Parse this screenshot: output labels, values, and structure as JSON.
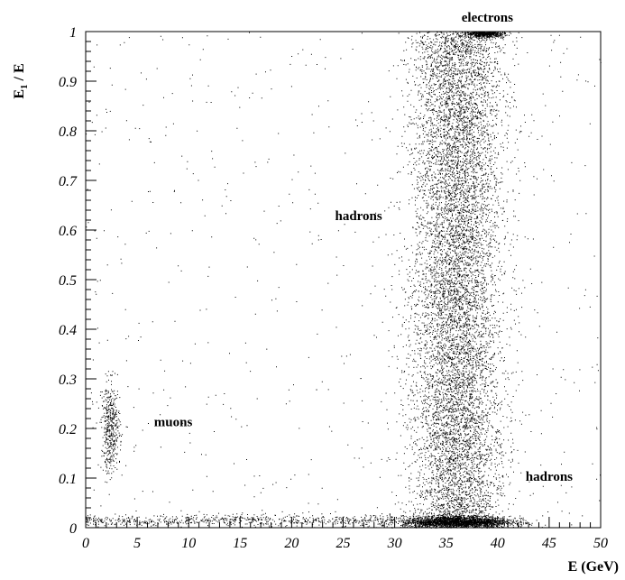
{
  "chart_data": {
    "type": "scatter",
    "xlabel": "E (GeV)",
    "ylabel": "E",
    "ylabel_sub": "1",
    "ylabel_suffix": " / E",
    "xlim": [
      0,
      50
    ],
    "ylim": [
      0,
      1
    ],
    "xticks": [
      0,
      5,
      10,
      15,
      20,
      25,
      30,
      35,
      40,
      45,
      50
    ],
    "yticks": [
      0,
      0.1,
      0.2,
      0.3,
      0.4,
      0.5,
      0.6,
      0.7,
      0.8,
      0.9,
      1
    ],
    "grid": false,
    "annotations": [
      {
        "text": "electrons",
        "x": 39.0,
        "y": 1.02
      },
      {
        "text": "hadrons",
        "x": 26.5,
        "y": 0.62
      },
      {
        "text": "muons",
        "x": 8.5,
        "y": 0.205
      },
      {
        "text": "hadrons",
        "x": 45.0,
        "y": 0.095
      }
    ],
    "clusters": [
      {
        "name": "hadron band",
        "x_mean": 36.0,
        "x_sd": 2.2,
        "y_range": [
          0.02,
          1.0
        ],
        "count": 9000
      },
      {
        "name": "hadron MIP peak",
        "x_mean": 36.0,
        "x_sd": 2.6,
        "y_mean": 0.012,
        "y_sd": 0.006,
        "count": 2600
      },
      {
        "name": "electron peak",
        "x_mean": 38.8,
        "x_sd": 0.9,
        "y_mean": 0.997,
        "y_sd": 0.004,
        "count": 700
      },
      {
        "name": "muon cluster",
        "x_mean": 2.4,
        "x_sd": 0.45,
        "y_mean": 0.2,
        "y_sd": 0.045,
        "count": 450
      },
      {
        "name": "low-E tail",
        "x_range": [
          0,
          30
        ],
        "y_mean": 0.015,
        "y_sd": 0.006,
        "count": 700
      },
      {
        "name": "background",
        "x_range": [
          0,
          50
        ],
        "y_range": [
          0,
          1
        ],
        "count": 650
      }
    ]
  }
}
